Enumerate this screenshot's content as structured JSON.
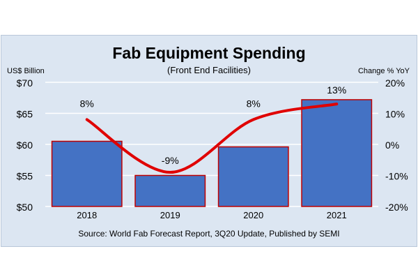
{
  "chart_data": {
    "type": "bar+line",
    "title": "Fab Equipment Spending",
    "subtitle": "(Front End Facilities)",
    "left_axis_title": "US$ Billion",
    "right_axis_title": "Change % YoY",
    "source": "Source: World Fab Forecast Report, 3Q20 Update, Published by SEMI",
    "categories": [
      "2018",
      "2019",
      "2020",
      "2021"
    ],
    "left_axis": {
      "ylim": [
        50,
        70
      ],
      "ticks": [
        "$50",
        "$55",
        "$60",
        "$65",
        "$70"
      ],
      "tick_values": [
        50,
        55,
        60,
        65,
        70
      ]
    },
    "right_axis": {
      "ylim": [
        -20,
        20
      ],
      "ticks": [
        "-20%",
        "-10%",
        "0%",
        "10%",
        "20%"
      ],
      "tick_values": [
        -20,
        -10,
        0,
        10,
        20
      ]
    },
    "series": [
      {
        "values": [
          60.5,
          55.0,
          59.6,
          67.2
        ]
      },
      {
        "values": [
          8,
          -9,
          8,
          13
        ],
        "labels": [
          "8%",
          "-9%",
          "8%",
          "13%"
        ]
      }
    ],
    "grid": true,
    "colors": {
      "bar_fill": "#4472c4",
      "bar_stroke": "#c00000",
      "line": "#e00000",
      "panel": "#dce6f2",
      "grid": "#ffffff"
    }
  }
}
